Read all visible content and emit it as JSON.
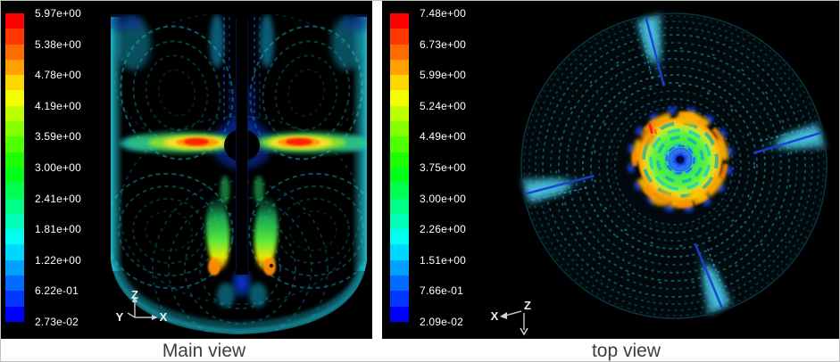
{
  "captions": {
    "main": "Main view",
    "top": "top view"
  },
  "colorbar_colors": [
    "#ff0000",
    "#ff3600",
    "#ff6b00",
    "#ffa100",
    "#ffd700",
    "#f2ff00",
    "#bbff00",
    "#86ff00",
    "#50ff00",
    "#1bff00",
    "#00ff1b",
    "#00ff50",
    "#00ff86",
    "#00ffbb",
    "#00fff1",
    "#00d7ff",
    "#00a1ff",
    "#006bff",
    "#0036ff",
    "#0000ff"
  ],
  "main_view": {
    "legend_values": [
      "5.97e+00",
      "5.38e+00",
      "4.78e+00",
      "4.19e+00",
      "3.59e+00",
      "3.00e+00",
      "2.41e+00",
      "1.81e+00",
      "1.22e+00",
      "6.22e-01",
      "2.73e-02"
    ],
    "axis": {
      "vertical": "Z",
      "horizontal": "X",
      "depth": "Y"
    }
  },
  "top_view": {
    "legend_values": [
      "7.48e+00",
      "6.73e+00",
      "5.99e+00",
      "5.24e+00",
      "4.49e+00",
      "3.75e+00",
      "3.00e+00",
      "2.26e+00",
      "1.51e+00",
      "7.66e-01",
      "2.09e-02"
    ],
    "axis": {
      "horizontal": "X",
      "vertical": "Z"
    }
  },
  "colors": {
    "panel_background": "#000000",
    "page_background": "#ffffff",
    "legend_text": "#ffffff",
    "caption_text": "#3d3d3d",
    "vector_teal": "#0e6b6b",
    "vector_cyan": "#25cfd4",
    "baffle_blue": "#1b3fd6",
    "jet_red": "#ff2100",
    "impeller_green": "#3fe94c",
    "impeller_orange": "#ffb000",
    "vortex_blue": "#1b49ff"
  },
  "chart_data": [
    {
      "type": "vector-field",
      "title": "Main view",
      "description": "Velocity vector plot, axial cross-section of a stirred tank with central shaft; radial impeller jets at mid-height and plumes below the shaft tip",
      "colormap": "rainbow (blue min to red max), 20 bands",
      "legend_tick_values": [
        5.97,
        5.38,
        4.78,
        4.19,
        3.59,
        3.0,
        2.41,
        1.81,
        1.22,
        0.622,
        0.0273
      ],
      "range": [
        0.0273,
        5.97
      ],
      "legend_position": "left"
    },
    {
      "type": "vector-field",
      "title": "top view",
      "description": "Velocity vector plot, top view of a circular stirred tank; swirling tangential flow, four baffle wakes, impeller region at center",
      "colormap": "rainbow (blue min to red max), 20 bands",
      "legend_tick_values": [
        7.48,
        6.73,
        5.99,
        5.24,
        4.49,
        3.75,
        3.0,
        2.26,
        1.51,
        0.766,
        0.0209
      ],
      "range": [
        0.0209,
        7.48
      ],
      "legend_position": "left"
    }
  ]
}
